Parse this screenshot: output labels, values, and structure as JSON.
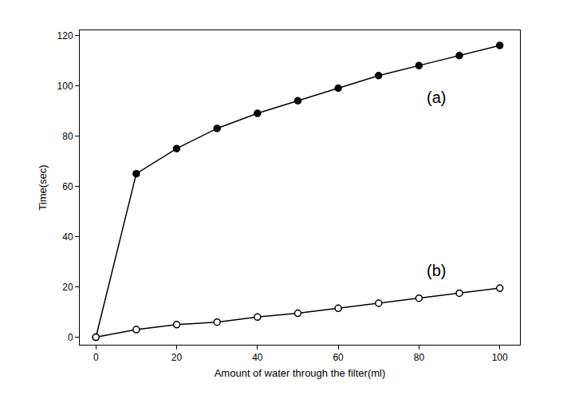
{
  "chart_data": {
    "type": "line",
    "x_label": "Amount of water through the filter(ml)",
    "y_label": "Time(sec)",
    "x": [
      0,
      10,
      20,
      30,
      40,
      50,
      60,
      70,
      80,
      90,
      100
    ],
    "series": [
      {
        "name": "(a)",
        "color": "#000000",
        "marker": "circle",
        "values": [
          0,
          65,
          75,
          83,
          89,
          94,
          99,
          104,
          108,
          112,
          116
        ]
      },
      {
        "name": "(b)",
        "color": "#000000",
        "marker": "circle-open",
        "values": [
          0,
          3,
          5,
          6,
          8,
          9.5,
          11.5,
          13.5,
          15.5,
          17.5,
          19.5
        ]
      }
    ],
    "xlim": [
      -4,
      105
    ],
    "xticks": [
      0,
      20,
      40,
      60,
      80,
      100
    ],
    "ylim": [
      -3,
      122
    ],
    "yticks": [
      0,
      20,
      40,
      60,
      80,
      100,
      120
    ],
    "grid": false
  }
}
